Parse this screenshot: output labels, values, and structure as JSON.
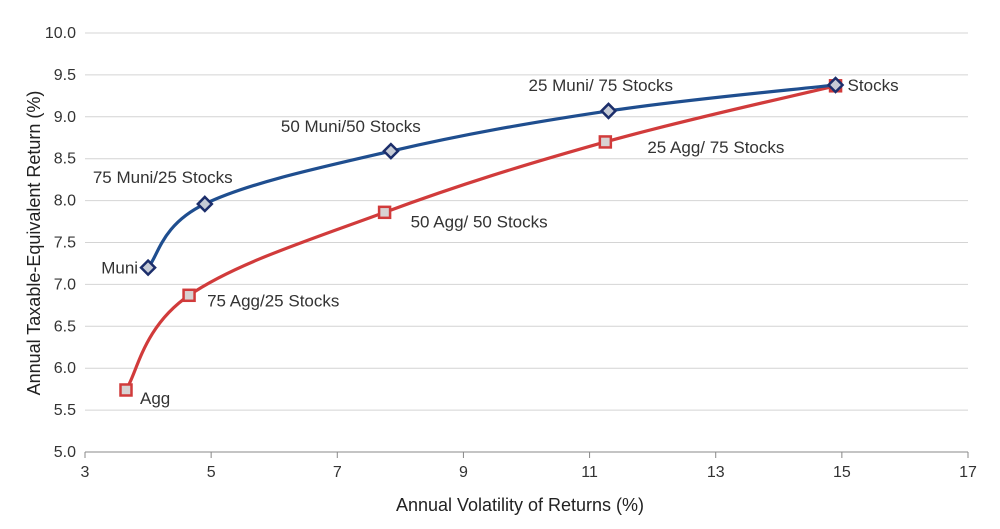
{
  "chart_data": {
    "type": "line",
    "xlabel": "Annual Volatility of Returns (%)",
    "ylabel": "Annual Taxable-Equivalent Return (%)",
    "xlim": [
      3,
      17
    ],
    "ylim": [
      5.0,
      10.0
    ],
    "x_ticks": [
      "3",
      "5",
      "7",
      "9",
      "11",
      "13",
      "15",
      "17"
    ],
    "y_ticks": [
      "5.0",
      "5.5",
      "6.0",
      "6.5",
      "7.0",
      "7.5",
      "8.0",
      "8.5",
      "9.0",
      "9.5",
      "10.0"
    ],
    "grid": "horizontal",
    "series": [
      {
        "color": "#1f4e8f",
        "marker": "diamond",
        "points": [
          {
            "label": "Muni",
            "x": 4.0,
            "y": 7.2
          },
          {
            "label": "75 Muni/25 Stocks",
            "x": 4.9,
            "y": 7.96
          },
          {
            "label": "50 Muni/50 Stocks",
            "x": 7.85,
            "y": 8.59
          },
          {
            "label": "25 Muni/ 75 Stocks",
            "x": 11.3,
            "y": 9.07
          },
          {
            "label": "Stocks",
            "x": 14.9,
            "y": 9.38
          }
        ]
      },
      {
        "color": "#d13b3b",
        "marker": "square",
        "points": [
          {
            "label": "Agg",
            "x": 3.65,
            "y": 5.74
          },
          {
            "label": "75 Agg/25 Stocks",
            "x": 4.65,
            "y": 6.87
          },
          {
            "label": "50 Agg/ 50 Stocks",
            "x": 7.75,
            "y": 7.86
          },
          {
            "label": "25 Agg/ 75 Stocks",
            "x": 11.25,
            "y": 8.7
          },
          {
            "label": "",
            "x": 14.9,
            "y": 9.37
          }
        ]
      }
    ]
  }
}
